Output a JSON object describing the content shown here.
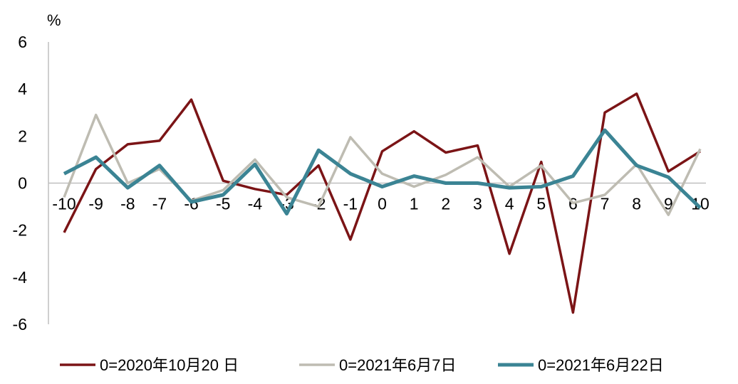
{
  "chart_data": {
    "type": "line",
    "unit_label": "%",
    "x": [
      -10,
      -9,
      -8,
      -7,
      -6,
      -5,
      -4,
      -3,
      -2,
      -1,
      0,
      1,
      2,
      3,
      4,
      5,
      6,
      7,
      8,
      9,
      10
    ],
    "x_tick_labels": [
      "-10",
      "-9",
      "-8",
      "-7",
      "-6",
      "-5",
      "-4",
      "-3",
      "-2",
      "-1",
      "0",
      "1",
      "2",
      "3",
      "4",
      "5",
      "6",
      "7",
      "8",
      "9",
      "10"
    ],
    "y_ticks": [
      6,
      4,
      2,
      0,
      -2,
      -4,
      -6
    ],
    "y_tick_labels": [
      "6",
      "4",
      "2",
      "0",
      "-2",
      "-4",
      "-6"
    ],
    "ylim": [
      -6,
      6
    ],
    "xlim": [
      -10,
      10
    ],
    "grid": false,
    "legend_position": "bottom",
    "series": [
      {
        "name": "0=2020年10月20 日",
        "color": "#7b1416",
        "values": [
          -2.1,
          0.6,
          1.65,
          1.8,
          3.55,
          0.1,
          -0.25,
          -0.5,
          0.75,
          -2.4,
          1.35,
          2.2,
          1.3,
          1.6,
          -3.0,
          0.9,
          -5.5,
          3.0,
          3.8,
          0.5,
          1.35
        ]
      },
      {
        "name": "0=2021年6月7日",
        "color": "#bebcb2",
        "values": [
          -0.6,
          2.9,
          0.0,
          0.6,
          -0.75,
          -0.3,
          1.0,
          -0.6,
          -1.0,
          1.95,
          0.4,
          -0.15,
          0.35,
          1.1,
          -0.15,
          0.75,
          -0.85,
          -0.5,
          0.8,
          -1.35,
          1.45
        ]
      },
      {
        "name": "0=2021年6月22日",
        "color": "#3b8494",
        "values": [
          0.4,
          1.1,
          -0.2,
          0.75,
          -0.8,
          -0.5,
          0.8,
          -1.3,
          1.4,
          0.4,
          -0.15,
          0.3,
          0.0,
          0.0,
          -0.2,
          -0.15,
          0.3,
          2.25,
          0.75,
          0.25,
          -1.05
        ]
      }
    ]
  }
}
